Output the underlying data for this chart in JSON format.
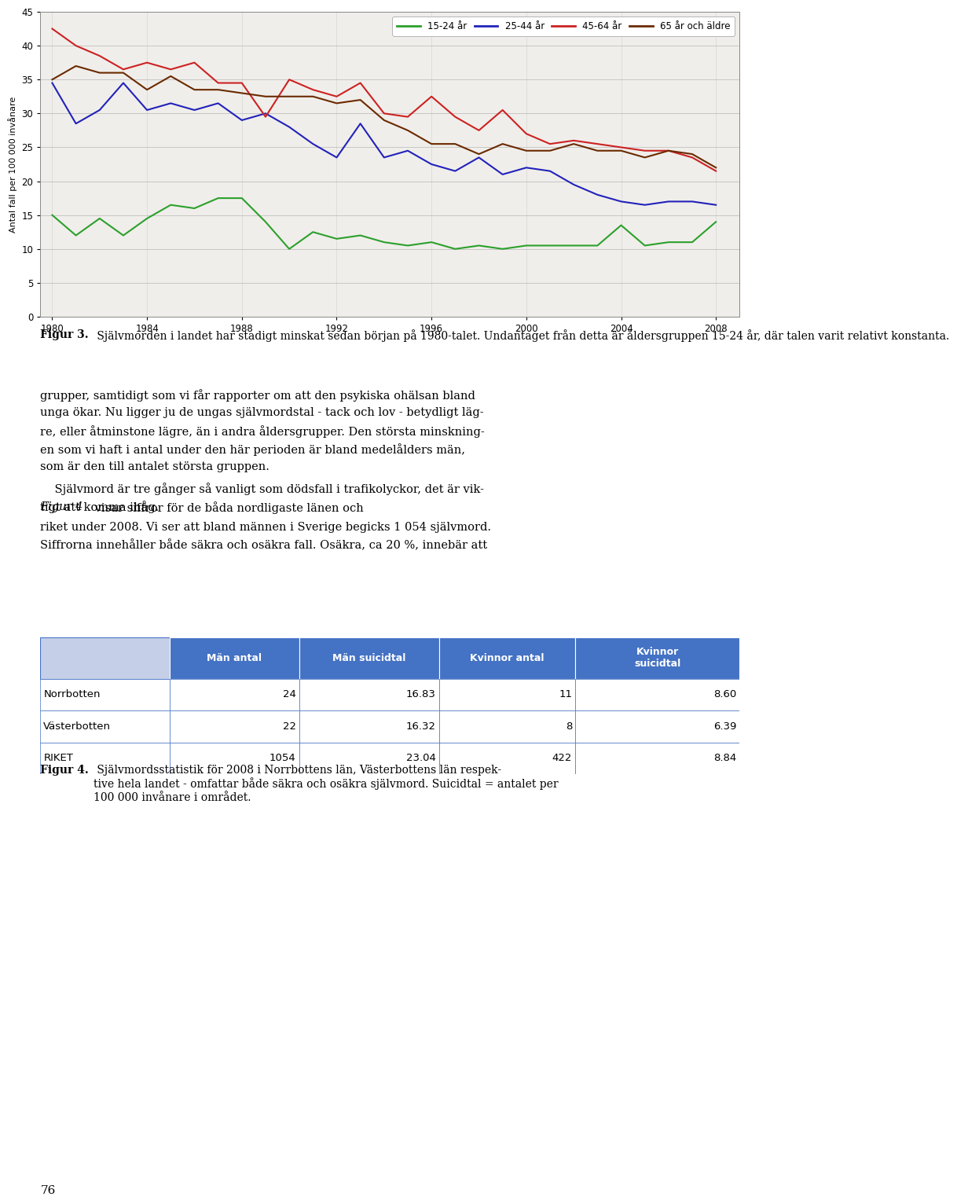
{
  "years": [
    1980,
    1981,
    1982,
    1983,
    1984,
    1985,
    1986,
    1987,
    1988,
    1989,
    1990,
    1991,
    1992,
    1993,
    1994,
    1995,
    1996,
    1997,
    1998,
    1999,
    2000,
    2001,
    2002,
    2003,
    2004,
    2005,
    2006,
    2007,
    2008
  ],
  "line_15_24": [
    15.0,
    12.0,
    14.5,
    12.0,
    14.5,
    16.5,
    16.0,
    17.5,
    17.5,
    14.0,
    10.0,
    12.5,
    11.5,
    12.0,
    11.0,
    10.5,
    11.0,
    10.0,
    10.5,
    10.0,
    10.5,
    10.5,
    10.5,
    10.5,
    13.5,
    10.5,
    11.0,
    11.0,
    14.0
  ],
  "line_25_44": [
    34.5,
    28.5,
    30.5,
    34.5,
    30.5,
    31.5,
    30.5,
    31.5,
    29.0,
    30.0,
    28.0,
    25.5,
    23.5,
    28.5,
    23.5,
    24.5,
    22.5,
    21.5,
    23.5,
    21.0,
    22.0,
    21.5,
    19.5,
    18.0,
    17.0,
    16.5,
    17.0,
    17.0,
    16.5
  ],
  "line_45_64": [
    42.5,
    40.0,
    38.5,
    36.5,
    37.5,
    36.5,
    37.5,
    34.5,
    34.5,
    29.5,
    35.0,
    33.5,
    32.5,
    34.5,
    30.0,
    29.5,
    32.5,
    29.5,
    27.5,
    30.5,
    27.0,
    25.5,
    26.0,
    25.5,
    25.0,
    24.5,
    24.5,
    23.5,
    21.5
  ],
  "line_65_plus": [
    35.0,
    37.0,
    36.0,
    36.0,
    33.5,
    35.5,
    33.5,
    33.5,
    33.0,
    32.5,
    32.5,
    32.5,
    31.5,
    32.0,
    29.0,
    27.5,
    25.5,
    25.5,
    24.0,
    25.5,
    24.5,
    24.5,
    25.5,
    24.5,
    24.5,
    23.5,
    24.5,
    24.0,
    22.0
  ],
  "color_15_24": "#2ca02c",
  "color_25_44": "#2222bb",
  "color_45_64": "#cc2222",
  "color_65_plus": "#6b2a00",
  "ylabel": "Antal fall per 100 000 invånare",
  "ylim": [
    0,
    45
  ],
  "yticks": [
    0,
    5,
    10,
    15,
    20,
    25,
    30,
    35,
    40,
    45
  ],
  "xticks": [
    1980,
    1984,
    1988,
    1992,
    1996,
    2000,
    2004,
    2008
  ],
  "legend_labels": [
    "15-24 år",
    "25-44 år",
    "45-64 år",
    "65 år och äldre"
  ],
  "fig3_bold": "Figur 3.",
  "fig3_text": " Självmorden i landet har stadigt minskat sedan början på 1980-talet. Undantaget från detta är åldersgruppen 15-24 år, där talen varit relativt konstanta.",
  "body1_lines": [
    "grupper, samtidigt som vi får rapporter om att den psykiska ohälsan bland",
    "unga ökar. Nu ligger ju de ungas självmordstal - tack och lov - betydligt läg-",
    "re, eller åtminstone lägre, än i andra åldersgrupper. Den största minskning-",
    "en som vi haft i antal under den här perioden är bland medelålders män,",
    "som är den till antalet största gruppen."
  ],
  "body2_lines": [
    "    Självmord är tre gånger så vanligt som dödsfall i trafikolyckor, det är vik-",
    "tigt att komma ihåg. "
  ],
  "body3_italic": "Figur 4",
  "body3_rest": " visar siffror för de båda nordligaste länen och",
  "body3_lines": [
    "riket under 2008. Vi ser att bland männen i Sverige begicks 1 054 självmord.",
    "Siffrorna innehåller både säkra och osäkra fall. Osäkra, ca 20 %, innebär att"
  ],
  "table_col_headers": [
    "Män antal",
    "Män suicidtal",
    "Kvinnor antal",
    "Kvinnor\nsuicidtal"
  ],
  "table_rows": [
    [
      "Norrbotten",
      "24",
      "16.83",
      "11",
      "8.60"
    ],
    [
      "Västerbotten",
      "22",
      "16.32",
      "8",
      "6.39"
    ],
    [
      "RIKET",
      "1054",
      "23.04",
      "422",
      "8.84"
    ]
  ],
  "table_header_bg": "#4472C4",
  "table_header_fg": "#ffffff",
  "table_border": "#4472C4",
  "fig4_bold": "Figur 4.",
  "fig4_text": " Självmordsstatistik för 2008 i Norrbottens län, Västerbottens län respek-\ntive hela landet - omfattar både säkra och osäkra självmord. Suicidtal = antalet per\n100 000 invånare i området.",
  "page_num": "76"
}
